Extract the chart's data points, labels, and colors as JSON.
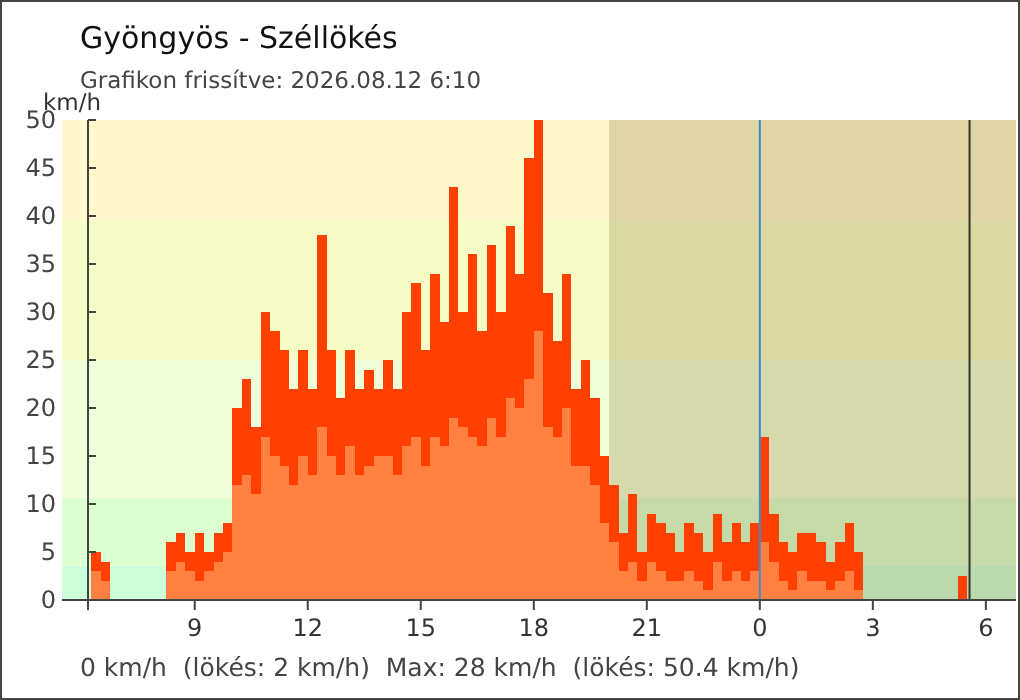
{
  "chart_data": {
    "type": "bar",
    "stacked": true,
    "title": "Gyöngyös - Széllökés",
    "subtitle": "Grafikon frissítve: 2026.08.12 6:10",
    "ylabel": "km/h",
    "annotations": [
      "0 km/h  (lökés: 2 km/h)  Max: 28 km/h  (lökés: 50.4 km/h)"
    ],
    "x": [
      "2026-08-11T06:15",
      "2026-08-11T06:30",
      "2026-08-11T06:45",
      "2026-08-11T07:00",
      "2026-08-11T07:15",
      "2026-08-11T07:30",
      "2026-08-11T07:45",
      "2026-08-11T08:00",
      "2026-08-11T08:15",
      "2026-08-11T08:30",
      "2026-08-11T08:45",
      "2026-08-11T09:00",
      "2026-08-11T09:15",
      "2026-08-11T09:30",
      "2026-08-11T09:45",
      "2026-08-11T10:00",
      "2026-08-11T10:15",
      "2026-08-11T10:30",
      "2026-08-11T10:45",
      "2026-08-11T11:00",
      "2026-08-11T11:15",
      "2026-08-11T11:30",
      "2026-08-11T11:45",
      "2026-08-11T12:00",
      "2026-08-11T12:15",
      "2026-08-11T12:30",
      "2026-08-11T12:45",
      "2026-08-11T13:00",
      "2026-08-11T13:15",
      "2026-08-11T13:30",
      "2026-08-11T13:45",
      "2026-08-11T14:00",
      "2026-08-11T14:15",
      "2026-08-11T14:30",
      "2026-08-11T14:45",
      "2026-08-11T15:00",
      "2026-08-11T15:15",
      "2026-08-11T15:30",
      "2026-08-11T15:45",
      "2026-08-11T16:00",
      "2026-08-11T16:15",
      "2026-08-11T16:30",
      "2026-08-11T16:45",
      "2026-08-11T17:00",
      "2026-08-11T17:15",
      "2026-08-11T17:30",
      "2026-08-11T17:45",
      "2026-08-11T18:00",
      "2026-08-11T18:15",
      "2026-08-11T18:30",
      "2026-08-11T18:45",
      "2026-08-11T19:00",
      "2026-08-11T19:15",
      "2026-08-11T19:30",
      "2026-08-11T19:45",
      "2026-08-11T20:00",
      "2026-08-11T20:15",
      "2026-08-11T20:30",
      "2026-08-11T20:45",
      "2026-08-11T21:00",
      "2026-08-11T21:15",
      "2026-08-11T21:30",
      "2026-08-11T21:45",
      "2026-08-11T22:00",
      "2026-08-11T22:15",
      "2026-08-11T22:30",
      "2026-08-11T22:45",
      "2026-08-11T23:00",
      "2026-08-11T23:15",
      "2026-08-11T23:30",
      "2026-08-11T23:45",
      "2026-08-12T00:00",
      "2026-08-12T00:15",
      "2026-08-12T00:30",
      "2026-08-12T00:45",
      "2026-08-12T01:00",
      "2026-08-12T01:15",
      "2026-08-12T01:30",
      "2026-08-12T01:45",
      "2026-08-12T02:00",
      "2026-08-12T02:15",
      "2026-08-12T02:30",
      "2026-08-12T02:45",
      "2026-08-12T03:00",
      "2026-08-12T03:15",
      "2026-08-12T03:30",
      "2026-08-12T03:45",
      "2026-08-12T04:00",
      "2026-08-12T04:15",
      "2026-08-12T04:30",
      "2026-08-12T04:45",
      "2026-08-12T05:00",
      "2026-08-12T05:15",
      "2026-08-12T05:30",
      "2026-08-12T05:45",
      "2026-08-12T06:00",
      "2026-08-12T06:15",
      "2026-08-12T06:30"
    ],
    "series": [
      {
        "color": "#ff8040",
        "values": [
          3,
          2,
          0,
          0,
          0,
          0,
          0,
          0,
          3,
          4,
          3,
          2,
          3,
          4,
          5,
          12,
          13,
          11,
          17,
          15,
          14,
          12,
          15,
          13,
          18,
          15,
          13,
          16,
          13,
          14,
          15,
          15,
          13,
          16,
          17,
          14,
          17,
          16,
          19,
          18,
          17,
          16,
          19,
          17,
          21,
          20,
          23,
          28,
          18,
          17,
          20,
          14,
          14,
          12,
          8,
          6,
          3,
          4,
          2,
          4,
          3,
          2,
          2,
          3,
          2,
          1,
          4,
          2,
          3,
          2,
          3,
          6,
          4,
          2,
          1,
          3,
          2,
          2,
          1,
          2,
          3,
          1,
          0,
          0,
          0,
          0,
          0,
          0,
          0,
          0,
          0,
          0,
          0,
          0,
          0,
          0,
          0,
          0
        ]
      },
      {
        "color": "#ff4000",
        "values": [
          2,
          2,
          0,
          0,
          0,
          0,
          0,
          0,
          3,
          3,
          2,
          5,
          2,
          3,
          3,
          8,
          10,
          7,
          13,
          13,
          12,
          10,
          11,
          9,
          20,
          11,
          8,
          10,
          9,
          10,
          7,
          10,
          9,
          14,
          16,
          12,
          17,
          13,
          24,
          12,
          19,
          12,
          18,
          13,
          18,
          14,
          23,
          22,
          14,
          10,
          14,
          8,
          11,
          9,
          7,
          6,
          4,
          7,
          3,
          5,
          5,
          5,
          3,
          5,
          5,
          4,
          5,
          4,
          5,
          4,
          5,
          11,
          5,
          4,
          4,
          4,
          5,
          4,
          3,
          4,
          5,
          4,
          0,
          0,
          0,
          0,
          0,
          0,
          0,
          0,
          0,
          0,
          2.5,
          0,
          0,
          0,
          0,
          0
        ]
      }
    ],
    "xlim": [
      "2026-08-11T06:10",
      "2026-08-12T06:48"
    ],
    "xticks": [
      {
        "value": "2026-08-11T09:00",
        "label": "9"
      },
      {
        "value": "2026-08-11T12:00",
        "label": "12"
      },
      {
        "value": "2026-08-11T15:00",
        "label": "15"
      },
      {
        "value": "2026-08-11T18:00",
        "label": "18"
      },
      {
        "value": "2026-08-11T21:00",
        "label": "21"
      },
      {
        "value": "2026-08-12T00:00",
        "label": "0"
      },
      {
        "value": "2026-08-12T03:00",
        "label": "3"
      },
      {
        "value": "2026-08-12T06:00",
        "label": "6"
      }
    ],
    "ylim": [
      0,
      50
    ],
    "yticks": [
      0,
      5,
      10,
      15,
      20,
      25,
      30,
      35,
      40,
      45,
      50
    ],
    "bands": [
      {
        "axis": "y",
        "from": 0,
        "to": 3.6,
        "color": "#ccffd9"
      },
      {
        "axis": "y",
        "from": 3.6,
        "to": 10.6,
        "color": "#ddffd0"
      },
      {
        "axis": "y",
        "from": 10.6,
        "to": 25,
        "color": "#f0ffd9"
      },
      {
        "axis": "y",
        "from": 25,
        "to": 39.5,
        "color": "#f5fcc6"
      },
      {
        "axis": "y",
        "from": 39.5,
        "to": 50,
        "color": "#fff8cc"
      },
      {
        "axis": "x",
        "from": "2026-08-11T20:00",
        "to": "2026-08-12T06:48",
        "color": "#8c7a3c"
      }
    ],
    "ref_lines": [
      {
        "axis": "x",
        "value": "2026-08-12T00:00",
        "color": "#3a8ccc"
      },
      {
        "axis": "x",
        "value": "2026-08-12T05:34",
        "color": "#333333"
      }
    ]
  }
}
